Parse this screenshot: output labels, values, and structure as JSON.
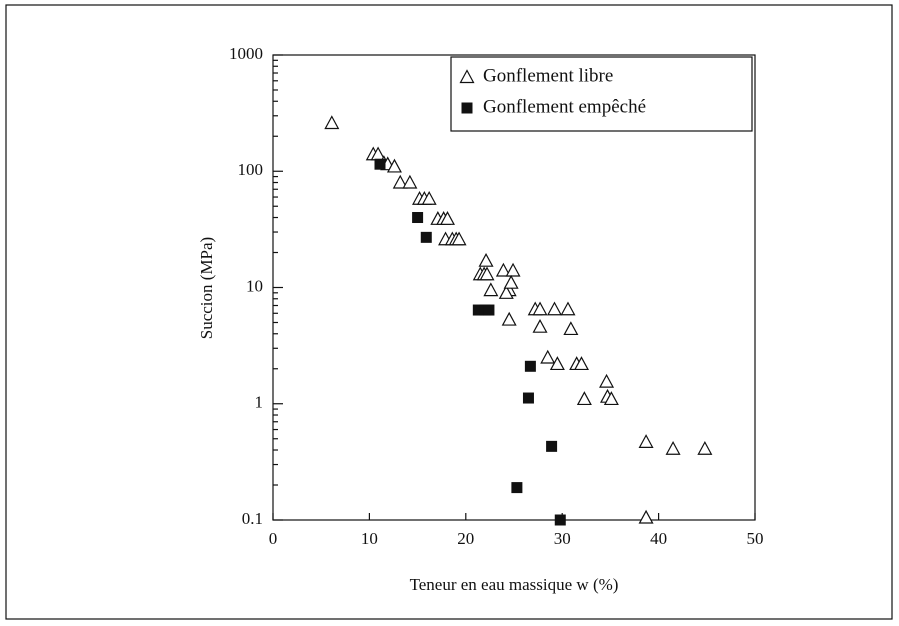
{
  "chart_data": {
    "type": "scatter",
    "xlabel": "Teneur en eau massique w (%)",
    "ylabel": "Succion (MPa)",
    "xlim": [
      0,
      50
    ],
    "xticks": [
      0,
      10,
      20,
      30,
      40,
      50
    ],
    "ylim": [
      0.1,
      1000
    ],
    "yticks": [
      0.1,
      1,
      10,
      100,
      1000
    ],
    "yscale": "log",
    "legend": "upper right",
    "series": [
      {
        "name": "Gonflement libre",
        "color": "#111111",
        "marker": "triangle",
        "x": [
          6.1,
          10.4,
          10.9,
          11.5,
          11.9,
          12.6,
          13.2,
          14.2,
          15.2,
          15.7,
          16.2,
          17.1,
          17.7,
          18.1,
          17.9,
          18.6,
          19.0,
          19.3,
          22.1,
          21.5,
          21.9,
          22.2,
          22.6,
          23.9,
          24.9,
          24.5,
          24.2,
          24.7,
          24.5,
          27.2,
          27.7,
          29.2,
          30.6,
          27.7,
          30.9,
          28.5,
          29.5,
          31.5,
          32.0,
          32.3,
          34.6,
          34.7,
          35.1,
          38.7,
          41.5,
          44.8,
          38.7
        ],
        "values": [
          260,
          140,
          140,
          118,
          115,
          110,
          80,
          80,
          58,
          58,
          58,
          39,
          39,
          39,
          26,
          26,
          26,
          26,
          17,
          13,
          13,
          13,
          9.5,
          14,
          14,
          9.5,
          9,
          11,
          5.3,
          6.5,
          6.5,
          6.5,
          6.5,
          4.6,
          4.4,
          2.5,
          2.2,
          2.2,
          2.2,
          1.1,
          1.55,
          1.15,
          1.1,
          0.47,
          0.41,
          0.41,
          0.105
        ]
      },
      {
        "name": "Gonflement empêché",
        "color": "#111111",
        "marker": "square",
        "x": [
          11.1,
          15.0,
          15.9,
          21.3,
          22.0,
          22.4,
          26.7,
          26.5,
          28.9,
          25.3,
          29.8
        ],
        "values": [
          115,
          40,
          27,
          6.4,
          6.4,
          6.4,
          2.1,
          1.12,
          0.43,
          0.19,
          0.1
        ]
      }
    ]
  }
}
